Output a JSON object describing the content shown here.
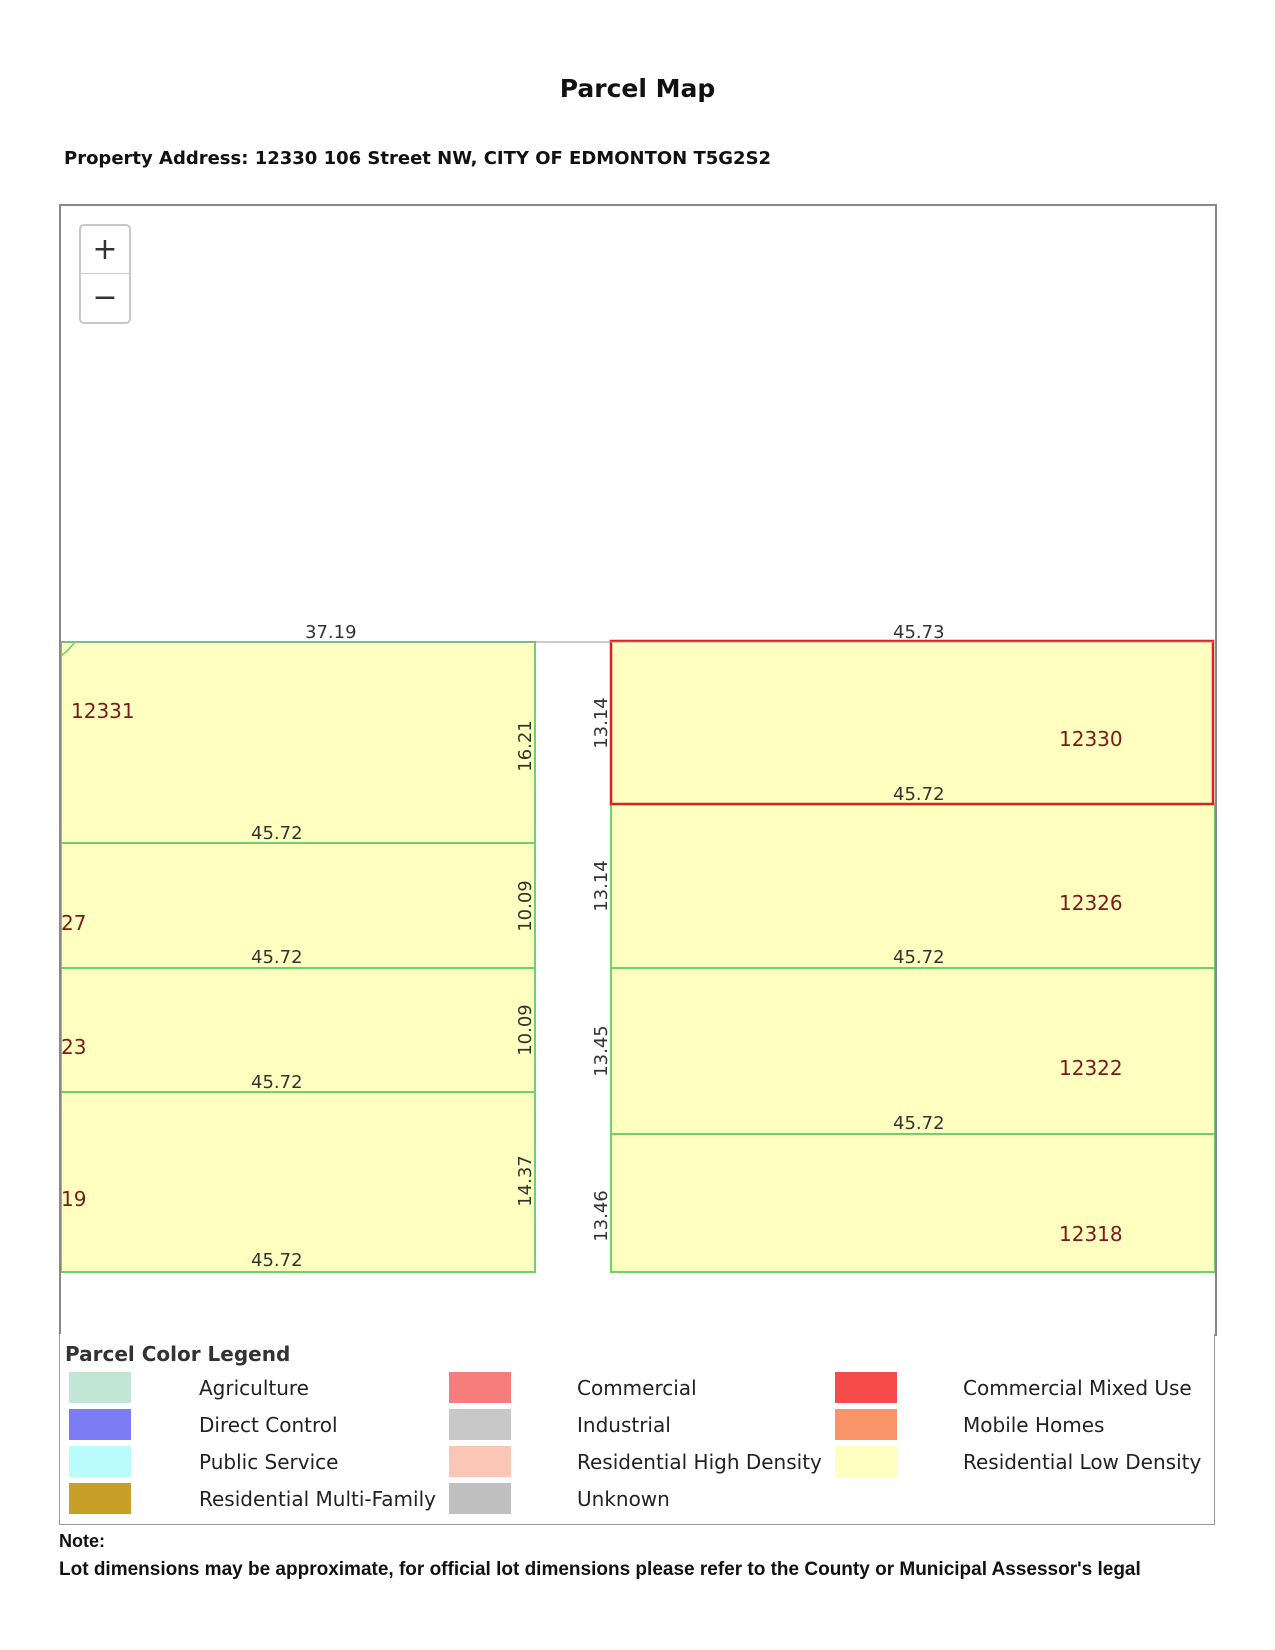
{
  "title": "Parcel Map",
  "address": "Property Address: 12330 106 Street NW, CITY OF EDMONTON T5G2S2",
  "zoom": {
    "in_label": "+",
    "out_label": "−"
  },
  "map": {
    "dimensions": {
      "top_left": "37.19",
      "top_right": "45.73",
      "left_1": "45.72",
      "left_2": "45.72",
      "left_3": "45.72",
      "left_4": "45.72",
      "right_1": "45.72",
      "right_2": "45.72",
      "right_3": "45.72",
      "v_left_1": "16.21",
      "v_left_2": "10.09",
      "v_left_3": "10.09",
      "v_left_4": "14.37",
      "v_right_1": "13.14",
      "v_right_2": "13.14",
      "v_right_3": "13.45",
      "v_right_4": "13.46"
    },
    "parcels": {
      "p12331": "12331",
      "p27": "27",
      "p23": "23",
      "p19": "19",
      "p12330": "12330",
      "p12326": "12326",
      "p12322": "12322",
      "p12318": "12318"
    },
    "colors": {
      "parcel_fill": "#ffffc0",
      "parcel_line": "#6bd36b",
      "selected_line": "#e02020"
    }
  },
  "legend": {
    "title": "Parcel Color Legend",
    "items": [
      {
        "label": "Agriculture",
        "color": "#c2e6d6"
      },
      {
        "label": "Commercial",
        "color": "#f77c7c"
      },
      {
        "label": "Commercial Mixed Use",
        "color": "#f54b4b"
      },
      {
        "label": "Direct Control",
        "color": "#7c7cf5"
      },
      {
        "label": "Industrial",
        "color": "#c8c8c8"
      },
      {
        "label": "Mobile Homes",
        "color": "#f9936a"
      },
      {
        "label": "Public Service",
        "color": "#bafcfc"
      },
      {
        "label": "Residential High Density",
        "color": "#fcc6b7"
      },
      {
        "label": "Residential Low Density",
        "color": "#ffffc0"
      },
      {
        "label": "Residential Multi-Family",
        "color": "#c8a028"
      },
      {
        "label": "Unknown",
        "color": "#c0c0c0"
      }
    ]
  },
  "note": {
    "title": "Note:",
    "text": "Lot dimensions may be approximate, for official lot dimensions please refer to the County or Municipal Assessor's legal"
  }
}
